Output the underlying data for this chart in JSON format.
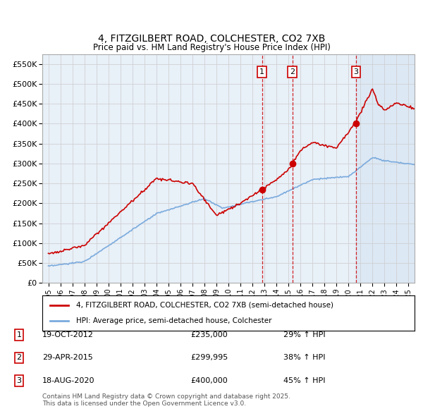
{
  "title": "4, FITZGILBERT ROAD, COLCHESTER, CO2 7XB",
  "subtitle": "Price paid vs. HM Land Registry's House Price Index (HPI)",
  "ylim": [
    0,
    575000
  ],
  "xlim_start": 1994.5,
  "xlim_end": 2025.5,
  "yticks": [
    0,
    50000,
    100000,
    150000,
    200000,
    250000,
    300000,
    350000,
    400000,
    450000,
    500000,
    550000
  ],
  "ytick_labels": [
    "£0",
    "£50K",
    "£100K",
    "£150K",
    "£200K",
    "£250K",
    "£300K",
    "£350K",
    "£400K",
    "£450K",
    "£500K",
    "£550K"
  ],
  "xticks": [
    1995,
    1996,
    1997,
    1998,
    1999,
    2000,
    2001,
    2002,
    2003,
    2004,
    2005,
    2006,
    2007,
    2008,
    2009,
    2010,
    2011,
    2012,
    2013,
    2014,
    2015,
    2016,
    2017,
    2018,
    2019,
    2020,
    2021,
    2022,
    2023,
    2024,
    2025
  ],
  "sale_events": [
    {
      "num": 1,
      "date": "19-OCT-2012",
      "price": 235000,
      "year": 2012.8,
      "pct": "29%",
      "dir": "↑"
    },
    {
      "num": 2,
      "date": "29-APR-2015",
      "price": 299995,
      "year": 2015.33,
      "pct": "38%",
      "dir": "↑"
    },
    {
      "num": 3,
      "date": "18-AUG-2020",
      "price": 400000,
      "year": 2020.63,
      "pct": "45%",
      "dir": "↑"
    }
  ],
  "legend_line1": "4, FITZGILBERT ROAD, COLCHESTER, CO2 7XB (semi-detached house)",
  "legend_line2": "HPI: Average price, semi-detached house, Colchester",
  "footnote": "Contains HM Land Registry data © Crown copyright and database right 2025.\nThis data is licensed under the Open Government Licence v3.0.",
  "red_color": "#cc0000",
  "blue_color": "#7aaadd",
  "plot_bg": "#e8f0f8",
  "grid_color": "#cccccc",
  "shade_bg": "#dce8f4"
}
